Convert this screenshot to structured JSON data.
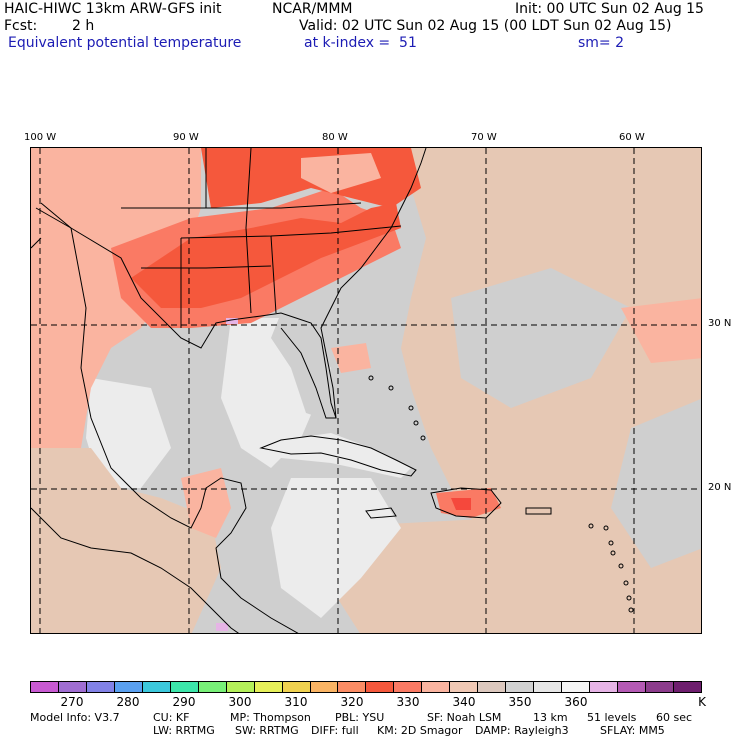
{
  "header": {
    "model_title": "HAIC-HIWC 13km ARW-GFS init",
    "org": "NCAR/MMM",
    "init": "Init: 00 UTC Sun 02 Aug 15",
    "fcst_label": "Fcst:",
    "fcst_value": "2 h",
    "valid": "Valid: 02 UTC Sun 02 Aug 15 (00 LDT Sun 02 Aug 15)",
    "field": "Equivalent potential temperature",
    "level": "at k-index =  51",
    "smooth": "sm= 2"
  },
  "map": {
    "lon_labels": [
      "100 W",
      "90 W",
      "80 W",
      "70 W",
      "60 W"
    ],
    "lat_labels": [
      "30 N",
      "20 N"
    ],
    "colors": {
      "ocean_gray": "#cfcfcf",
      "light": "#ececec",
      "tan": "#e6c8b4",
      "salmon": "#fab4a0",
      "orange_red": "#fb6e5a",
      "red": "#f5483c",
      "pink": "#f09aa0"
    }
  },
  "colorbar": {
    "colors": [
      "#c85ad2",
      "#a06ed2",
      "#8282e6",
      "#5aa0f0",
      "#3cc8dc",
      "#3ce6aa",
      "#78f078",
      "#b4f05a",
      "#e6f05a",
      "#f0d250",
      "#fab464",
      "#fb8c64",
      "#f5583c",
      "#fa7a64",
      "#fab4a0",
      "#f0c8b4",
      "#dcc8be",
      "#d2d2d2",
      "#e6e6e6",
      "#f5f5f5",
      "#e6b4e6",
      "#b45ab4",
      "#8c3c8c",
      "#6e1e6e"
    ],
    "labels": [
      "270",
      "280",
      "290",
      "300",
      "310",
      "320",
      "330",
      "340",
      "350",
      "360",
      "K"
    ]
  },
  "footer": {
    "line1": [
      "Model Info: V3.7",
      "CU: KF",
      "MP: Thompson",
      "PBL: YSU",
      "SF: Noah LSM",
      "13 km",
      "51 levels",
      "60 sec"
    ],
    "line2": [
      "LW: RRTMG",
      "SW: RRTMG",
      "DIFF: full",
      "KM: 2D Smagor",
      "DAMP: Rayleigh3",
      "SFLAY: MM5"
    ]
  }
}
